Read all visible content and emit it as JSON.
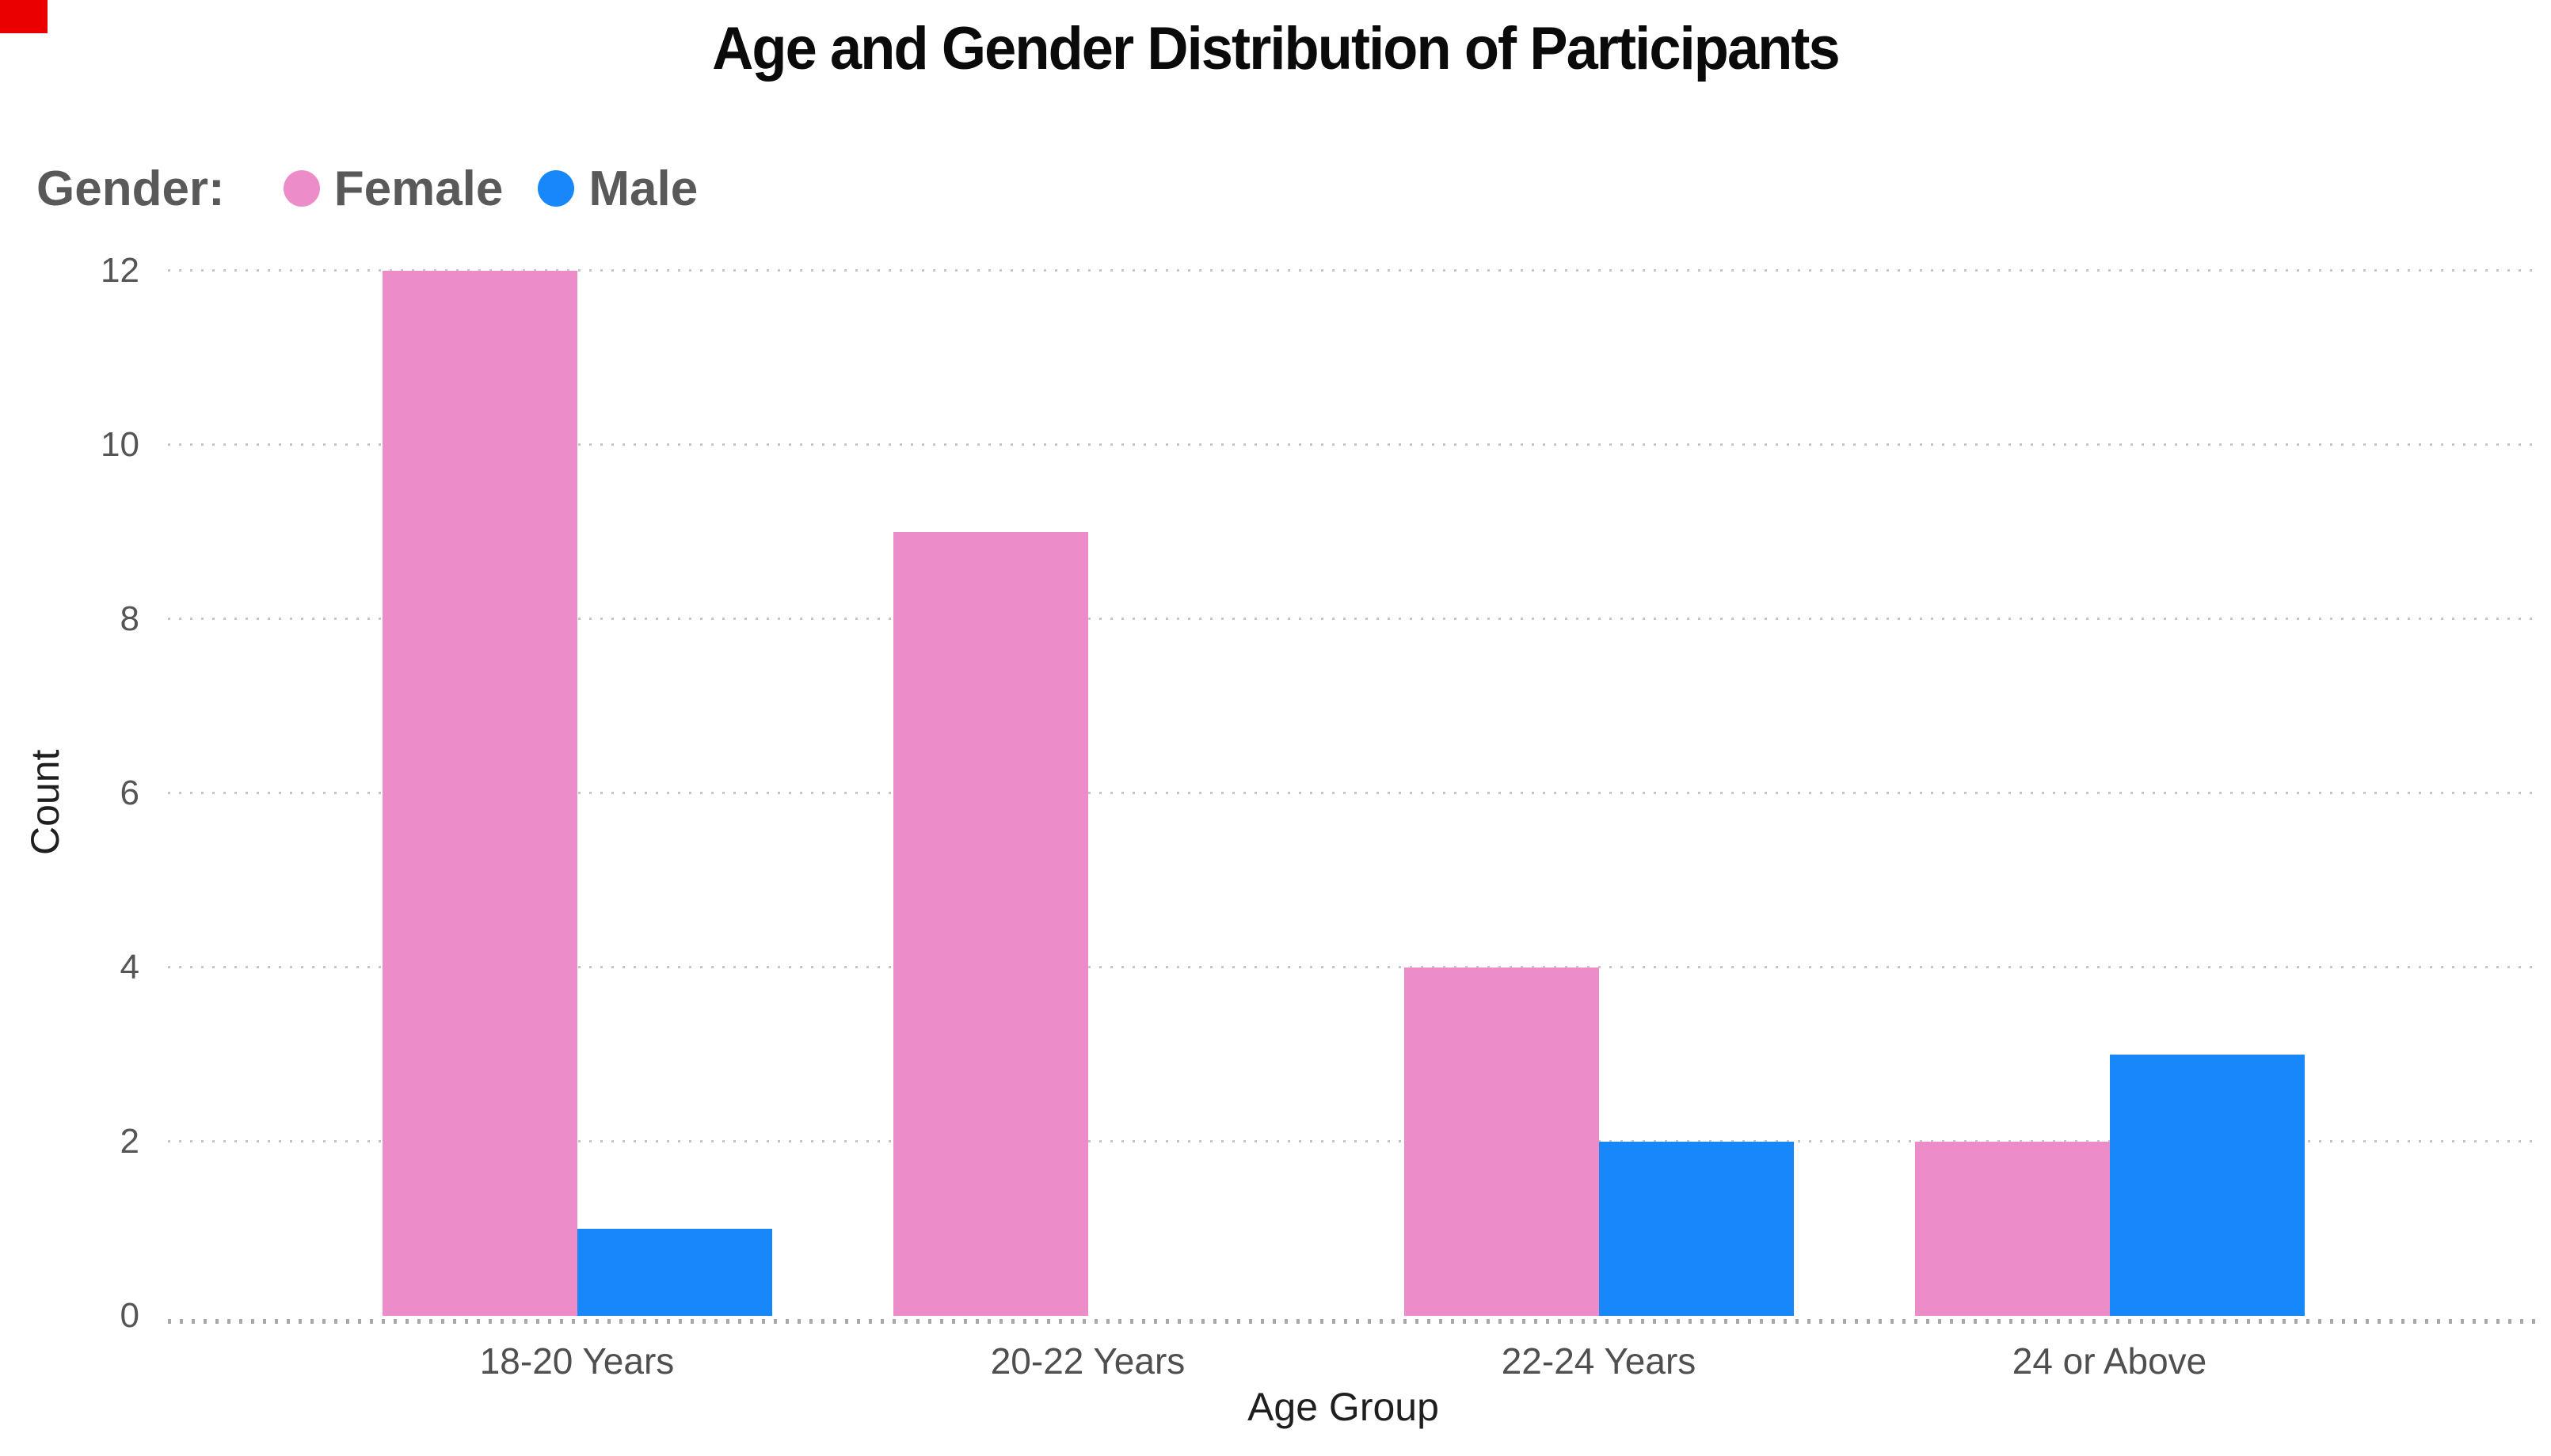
{
  "title": "Age and Gender Distribution of Participants",
  "legend": {
    "label": "Gender:",
    "items": [
      {
        "name": "Female",
        "color": "#EC8CC8"
      },
      {
        "name": "Male",
        "color": "#1787FA"
      }
    ]
  },
  "chart_data": {
    "type": "bar",
    "title": "Age and Gender Distribution of Participants",
    "categories": [
      "18-20 Years",
      "20-22 Years",
      "22-24 Years",
      "24 or Above"
    ],
    "series": [
      {
        "name": "Female",
        "color": "#EC8CC8",
        "values": [
          12,
          9,
          4,
          2
        ]
      },
      {
        "name": "Male",
        "color": "#1787FA",
        "values": [
          1,
          0,
          2,
          3
        ]
      }
    ],
    "xlabel": "Age Group",
    "ylabel": "Count",
    "ylim": [
      0,
      12
    ],
    "yticks": [
      0,
      2,
      4,
      6,
      8,
      10,
      12
    ],
    "grid": "dotted-horizontal",
    "legend_position": "top-left"
  },
  "ui": {
    "corner_marker_color": "#EB0000",
    "grid_color": "#C6C6C6",
    "tick_label_color": "#555555",
    "axis_title_color": "#1F1F1F",
    "legend_text_color": "#595959",
    "title_color": "#0A0A0A"
  }
}
